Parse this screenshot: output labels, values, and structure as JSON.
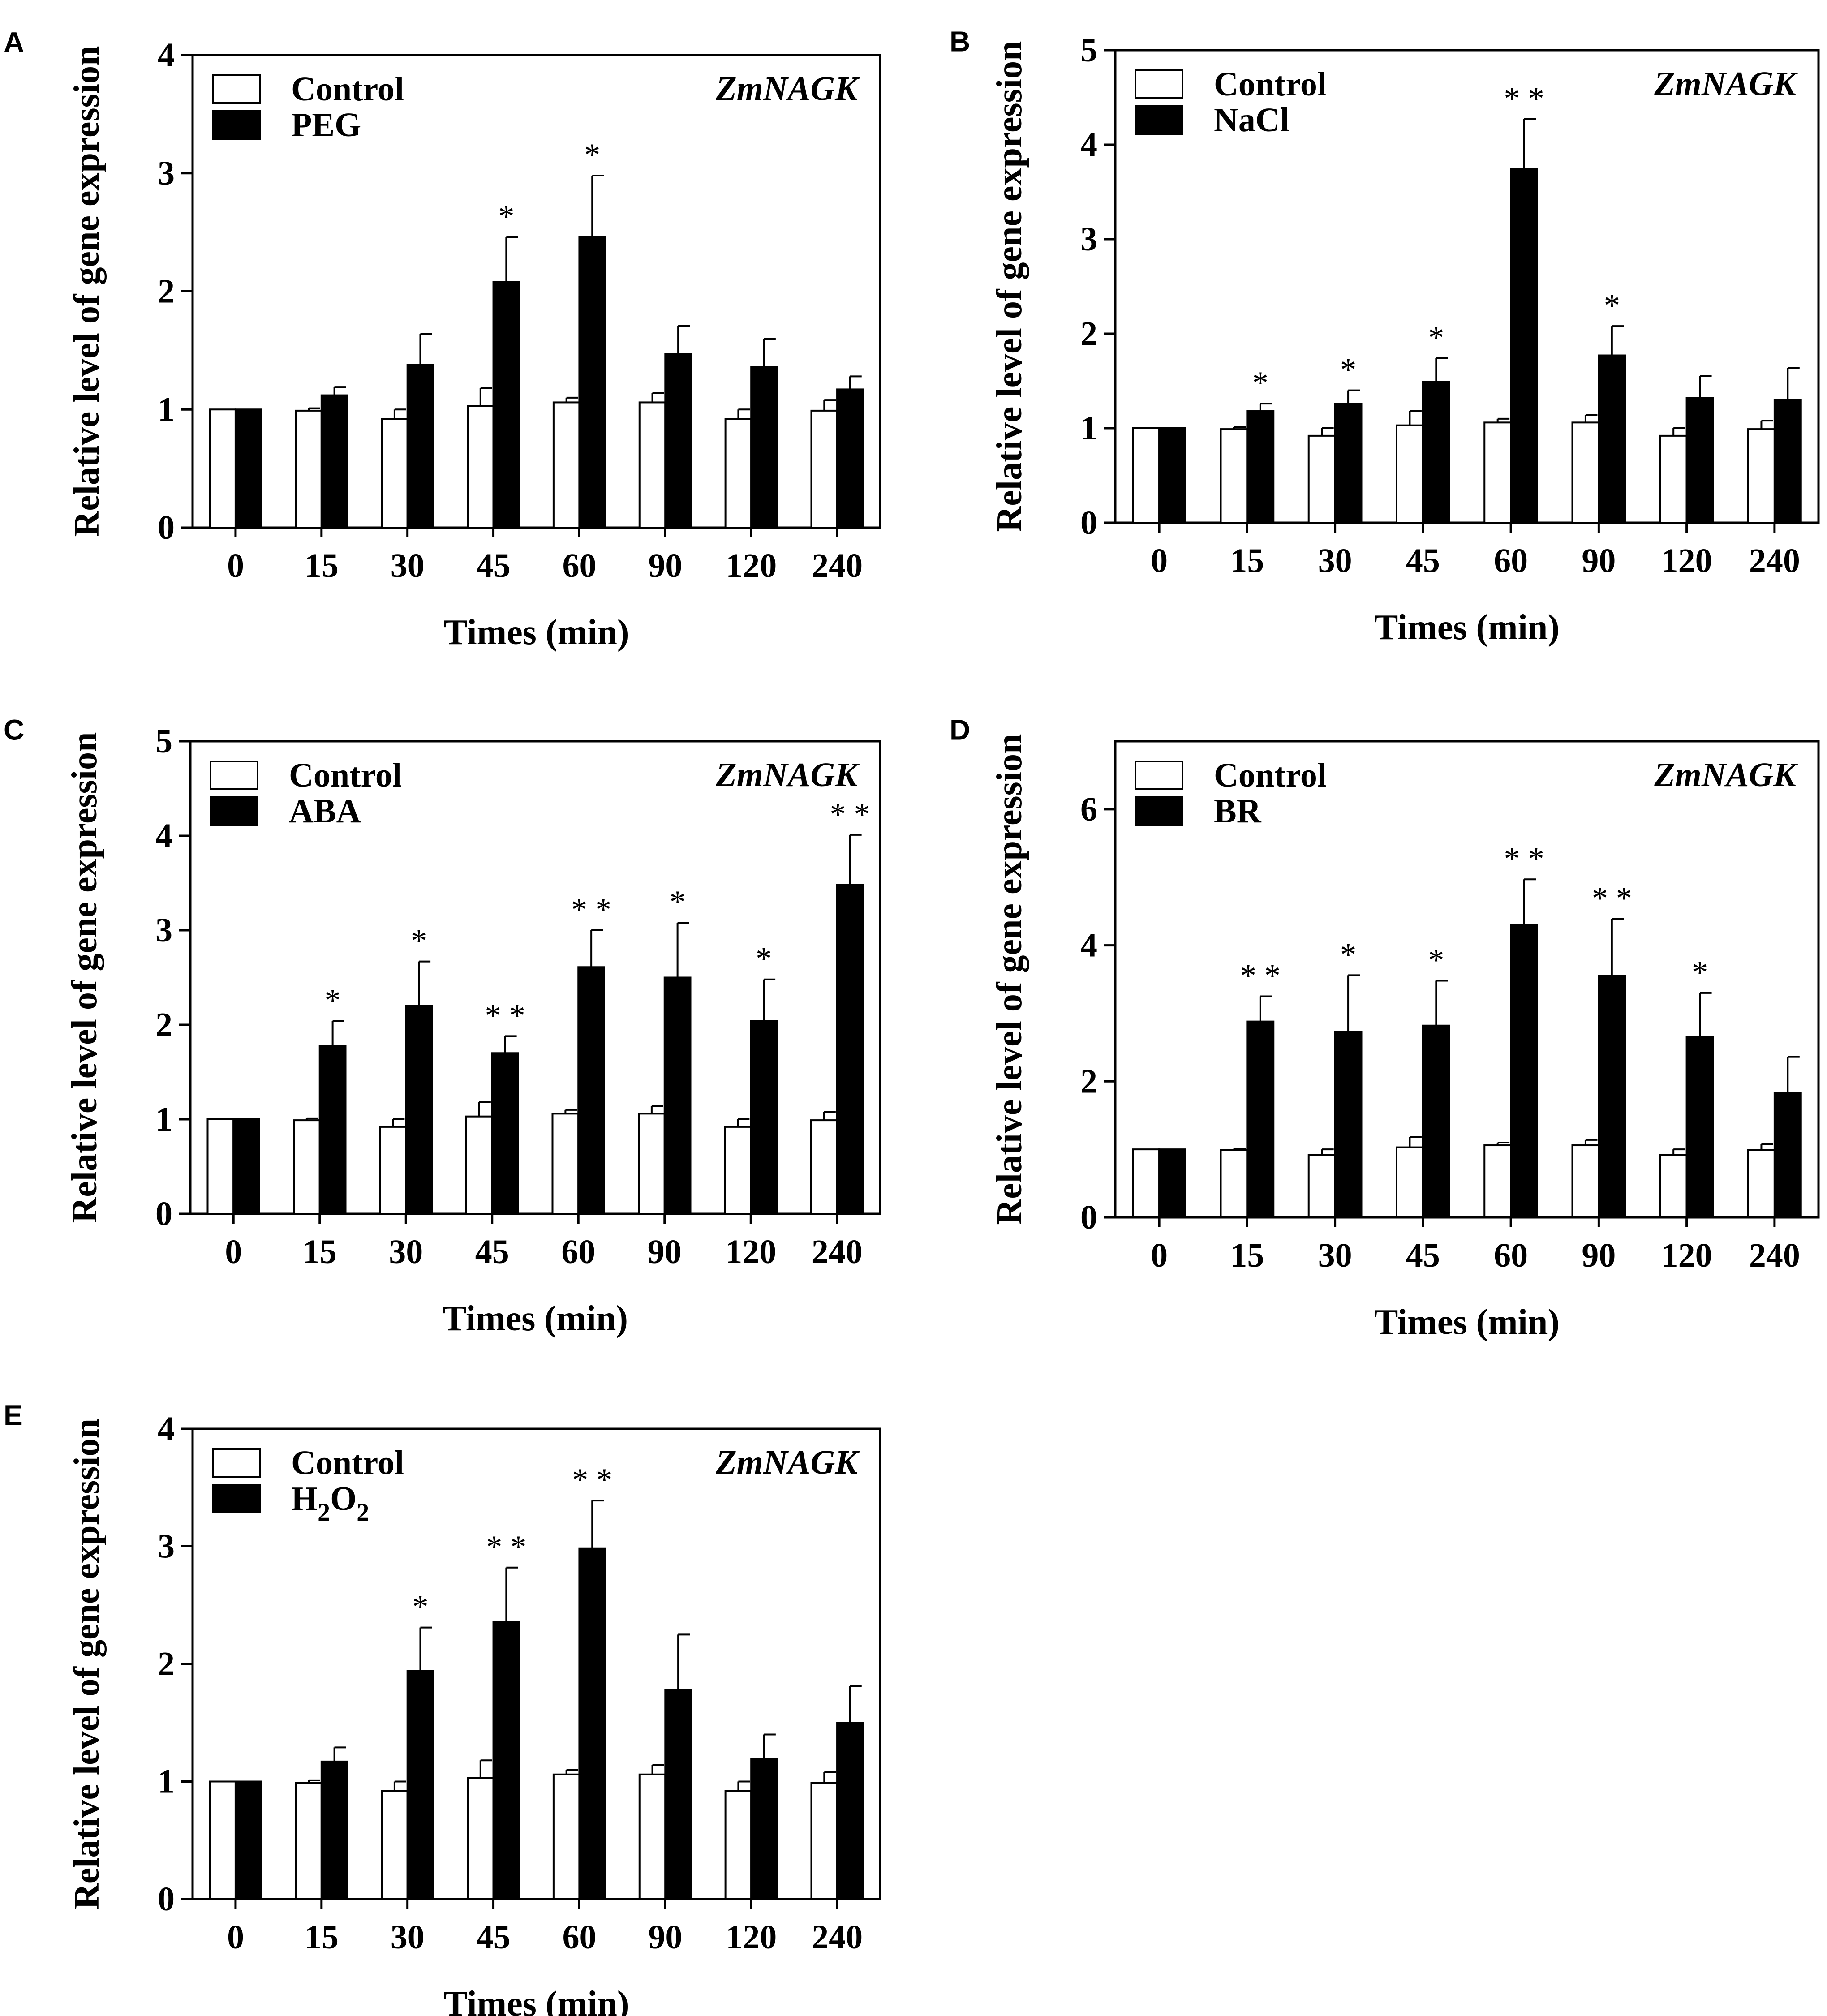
{
  "chart_data": [
    {
      "panel": "A",
      "type": "bar",
      "categories": [
        "0",
        "15",
        "30",
        "45",
        "60",
        "90",
        "120",
        "240"
      ],
      "series": [
        {
          "name": "Control",
          "values": [
            1.0,
            0.99,
            0.92,
            1.03,
            1.06,
            1.06,
            0.92,
            0.99
          ],
          "errors": [
            0.0,
            0.02,
            0.08,
            0.15,
            0.04,
            0.08,
            0.08,
            0.09
          ],
          "sig": [
            "",
            "",
            "",
            "",
            "",
            "",
            "",
            ""
          ]
        },
        {
          "name": "PEG",
          "values": [
            1.0,
            1.12,
            1.38,
            2.08,
            2.46,
            1.47,
            1.36,
            1.17
          ],
          "errors": [
            0.0,
            0.07,
            0.26,
            0.38,
            0.52,
            0.24,
            0.24,
            0.11
          ],
          "sig": [
            "",
            "",
            "",
            "*",
            "*",
            "",
            "",
            ""
          ]
        }
      ],
      "title": "ZmNAGK",
      "xlabel": "Times (min)",
      "ylabel": "Relative level of gene expression",
      "ylim": [
        0,
        4
      ],
      "yticks": [
        0,
        1,
        2,
        3,
        4
      ],
      "legend": "top-left"
    },
    {
      "panel": "B",
      "type": "bar",
      "categories": [
        "0",
        "15",
        "30",
        "45",
        "60",
        "90",
        "120",
        "240"
      ],
      "series": [
        {
          "name": "Control",
          "values": [
            1.0,
            0.99,
            0.92,
            1.03,
            1.06,
            1.06,
            0.92,
            0.99
          ],
          "errors": [
            0.0,
            0.02,
            0.08,
            0.15,
            0.04,
            0.08,
            0.08,
            0.09
          ],
          "sig": [
            "",
            "",
            "",
            "",
            "",
            "",
            "",
            ""
          ]
        },
        {
          "name": "NaCl",
          "values": [
            1.0,
            1.18,
            1.26,
            1.49,
            3.74,
            1.77,
            1.32,
            1.3
          ],
          "errors": [
            0.0,
            0.08,
            0.14,
            0.25,
            0.53,
            0.31,
            0.23,
            0.34
          ],
          "sig": [
            "",
            "*",
            "*",
            "*",
            "**",
            "*",
            "",
            ""
          ]
        }
      ],
      "title": "ZmNAGK",
      "xlabel": "Times (min)",
      "ylabel": "Relative level of gene expression",
      "ylim": [
        0,
        5
      ],
      "yticks": [
        0,
        1,
        2,
        3,
        4,
        5
      ],
      "legend": "top-left"
    },
    {
      "panel": "C",
      "type": "bar",
      "categories": [
        "0",
        "15",
        "30",
        "45",
        "60",
        "90",
        "120",
        "240"
      ],
      "series": [
        {
          "name": "Control",
          "values": [
            1.0,
            0.99,
            0.92,
            1.03,
            1.06,
            1.06,
            0.92,
            0.99
          ],
          "errors": [
            0.0,
            0.02,
            0.08,
            0.15,
            0.04,
            0.08,
            0.08,
            0.09
          ],
          "sig": [
            "",
            "",
            "",
            "",
            "",
            "",
            "",
            ""
          ]
        },
        {
          "name": "ABA",
          "values": [
            1.0,
            1.78,
            2.2,
            1.7,
            2.61,
            2.5,
            2.04,
            3.48
          ],
          "errors": [
            0.0,
            0.26,
            0.47,
            0.18,
            0.39,
            0.58,
            0.44,
            0.53
          ],
          "sig": [
            "",
            "*",
            "*",
            "**",
            "**",
            "*",
            "*",
            "**"
          ]
        }
      ],
      "title": "ZmNAGK",
      "xlabel": "Times (min)",
      "ylabel": "Relative level of gene expression",
      "ylim": [
        0,
        5
      ],
      "yticks": [
        0,
        1,
        2,
        3,
        4,
        5
      ],
      "legend": "top-left"
    },
    {
      "panel": "D",
      "type": "bar",
      "categories": [
        "0",
        "15",
        "30",
        "45",
        "60",
        "90",
        "120",
        "240"
      ],
      "series": [
        {
          "name": "Control",
          "values": [
            1.0,
            0.99,
            0.92,
            1.03,
            1.06,
            1.06,
            0.92,
            0.99
          ],
          "errors": [
            0.0,
            0.02,
            0.08,
            0.15,
            0.04,
            0.08,
            0.08,
            0.09
          ],
          "sig": [
            "",
            "",
            "",
            "",
            "",
            "",
            "",
            ""
          ]
        },
        {
          "name": "BR",
          "values": [
            1.0,
            2.88,
            2.73,
            2.82,
            4.3,
            3.55,
            2.65,
            1.83
          ],
          "errors": [
            0.0,
            0.37,
            0.83,
            0.66,
            0.67,
            0.84,
            0.65,
            0.53
          ],
          "sig": [
            "",
            "**",
            "*",
            "*",
            "**",
            "**",
            "*",
            ""
          ]
        }
      ],
      "title": "ZmNAGK",
      "xlabel": "Times (min)",
      "ylabel": "Relative level of gene expression",
      "ylim": [
        0,
        7
      ],
      "yticks": [
        0,
        2,
        4,
        6
      ],
      "legend": "top-left"
    },
    {
      "panel": "E",
      "type": "bar",
      "categories": [
        "0",
        "15",
        "30",
        "45",
        "60",
        "90",
        "120",
        "240"
      ],
      "series": [
        {
          "name": "Control",
          "values": [
            1.0,
            0.99,
            0.92,
            1.03,
            1.06,
            1.06,
            0.92,
            0.99
          ],
          "errors": [
            0.0,
            0.02,
            0.08,
            0.15,
            0.04,
            0.08,
            0.08,
            0.09
          ],
          "sig": [
            "",
            "",
            "",
            "",
            "",
            "",
            "",
            ""
          ]
        },
        {
          "name": "H2O2",
          "values": [
            1.0,
            1.17,
            1.94,
            2.36,
            2.98,
            1.78,
            1.19,
            1.5
          ],
          "errors": [
            0.0,
            0.12,
            0.37,
            0.46,
            0.41,
            0.47,
            0.21,
            0.31
          ],
          "sig": [
            "",
            "",
            "*",
            "**",
            "**",
            "",
            "",
            ""
          ]
        }
      ],
      "title": "ZmNAGK",
      "xlabel": "Times (min)",
      "ylabel": "Relative level of gene expression",
      "ylim": [
        0,
        4
      ],
      "yticks": [
        0,
        1,
        2,
        3,
        4
      ],
      "legend": "top-left"
    }
  ],
  "colors": {
    "control_fill": "#ffffff",
    "treatment_fill": "#000000",
    "stroke": "#000000"
  }
}
